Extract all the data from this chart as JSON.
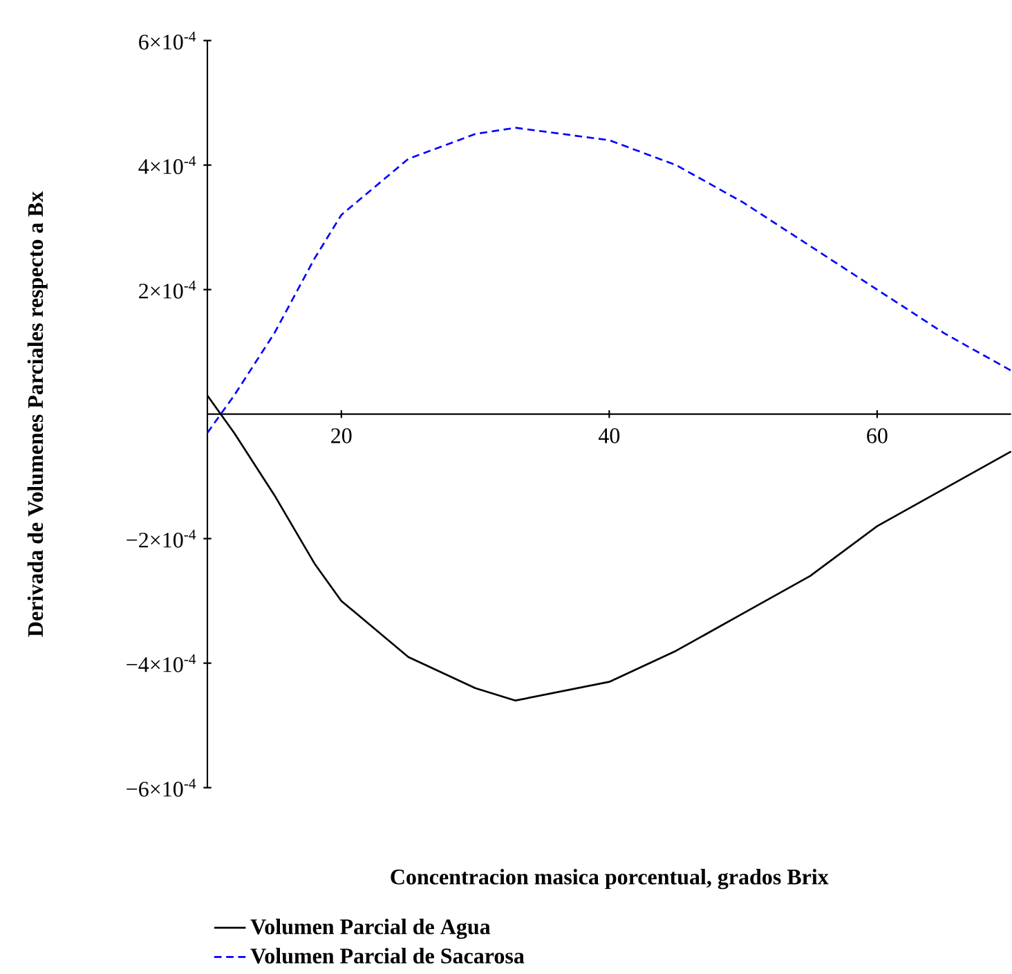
{
  "chart_data": {
    "type": "line",
    "xlabel": "Concentracion masica porcentual, grados Brix",
    "ylabel": "Derivada de Volumenes Parciales respecto a Bx",
    "x": [
      10,
      11,
      12,
      15,
      18,
      20,
      25,
      30,
      33,
      40,
      45,
      50,
      55,
      60,
      65,
      70
    ],
    "series": [
      {
        "name": "Volumen Parcial de Agua",
        "color": "#000000",
        "line_style": "solid",
        "values": [
          3e-05,
          0.0,
          -3e-05,
          -0.00013,
          -0.00024,
          -0.0003,
          -0.00039,
          -0.00044,
          -0.00046,
          -0.00043,
          -0.00038,
          -0.00032,
          -0.00026,
          -0.00018,
          -0.00012,
          -6e-05
        ]
      },
      {
        "name": "Volumen Parcial de Sacarosa",
        "color": "#0000ff",
        "line_style": "dashed",
        "values": [
          -3e-05,
          0.0,
          3e-05,
          0.00013,
          0.00025,
          0.00032,
          0.00041,
          0.00045,
          0.00046,
          0.00044,
          0.0004,
          0.00034,
          0.00027,
          0.0002,
          0.00013,
          7e-05
        ]
      }
    ],
    "xlim": [
      10,
      70
    ],
    "xticks": [
      20,
      40,
      60
    ],
    "ylim": [
      -0.0006,
      0.0006
    ],
    "yticks": [
      {
        "value": -0.0006,
        "label": "−6×10$^{-4}$"
      },
      {
        "value": -0.0004,
        "label": "−4×10$^{-4}$"
      },
      {
        "value": -0.0002,
        "label": "−2×10$^{-4}$"
      },
      {
        "value": 0,
        "label": null
      },
      {
        "value": 0.0002,
        "label": "2×10$^{-4}$"
      },
      {
        "value": 0.0004,
        "label": "4×10$^{-4}$"
      },
      {
        "value": 0.0006,
        "label": "6×10$^{-4}$"
      }
    ],
    "legend": "bottom"
  }
}
